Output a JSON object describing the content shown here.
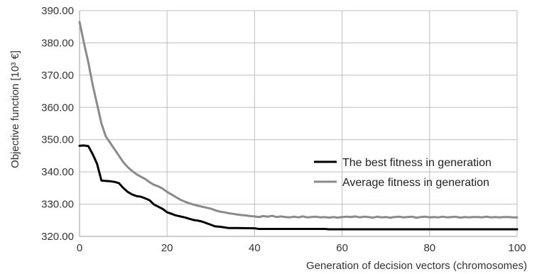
{
  "chart_data": {
    "type": "line",
    "title": "",
    "xlabel": "Generation of decision vectors (chromosomes)",
    "ylabel": "Objective function [10³ €]",
    "xlim": [
      0,
      100
    ],
    "ylim": [
      320,
      390
    ],
    "x_ticks": [
      0,
      20,
      40,
      60,
      80,
      100
    ],
    "y_ticks": [
      320,
      330,
      340,
      350,
      360,
      370,
      380,
      390
    ],
    "x_tick_labels": [
      "0",
      "20",
      "40",
      "60",
      "80",
      "100"
    ],
    "y_tick_labels": [
      "320.00",
      "330.00",
      "340.00",
      "350.00",
      "360.00",
      "370.00",
      "380.00",
      "390.00"
    ],
    "grid": true,
    "legend_position": "right",
    "series": [
      {
        "name": "The best fitness in generation",
        "color": "#000000",
        "points": [
          [
            0,
            348.1
          ],
          [
            1,
            348.2
          ],
          [
            2,
            348.0
          ],
          [
            3,
            345.5
          ],
          [
            4,
            342.5
          ],
          [
            5,
            337.3
          ],
          [
            6,
            337.2
          ],
          [
            7,
            337.1
          ],
          [
            8,
            336.9
          ],
          [
            9,
            336.5
          ],
          [
            10,
            335.0
          ],
          [
            11,
            333.8
          ],
          [
            12,
            333.0
          ],
          [
            13,
            332.5
          ],
          [
            14,
            332.3
          ],
          [
            15,
            331.8
          ],
          [
            16,
            331.2
          ],
          [
            17,
            329.9
          ],
          [
            18,
            329.2
          ],
          [
            19,
            328.5
          ],
          [
            20,
            327.5
          ],
          [
            21,
            327.0
          ],
          [
            22,
            326.5
          ],
          [
            23,
            326.2
          ],
          [
            24,
            325.9
          ],
          [
            25,
            325.5
          ],
          [
            26,
            325.1
          ],
          [
            27,
            324.9
          ],
          [
            28,
            324.6
          ],
          [
            29,
            324.1
          ],
          [
            30,
            323.6
          ],
          [
            31,
            323.1
          ],
          [
            32,
            323.0
          ],
          [
            33,
            322.8
          ],
          [
            34,
            322.6
          ],
          [
            36,
            322.6
          ],
          [
            40,
            322.5
          ],
          [
            41,
            322.3
          ],
          [
            50,
            322.3
          ],
          [
            56,
            322.3
          ],
          [
            57,
            322.2
          ],
          [
            70,
            322.2
          ],
          [
            85,
            322.2
          ],
          [
            100,
            322.2
          ]
        ]
      },
      {
        "name": "Average fitness in generation",
        "color": "#8a8a8a",
        "points": [
          [
            0,
            386.5
          ],
          [
            1,
            380.0
          ],
          [
            2,
            374.0
          ],
          [
            3,
            367.0
          ],
          [
            4,
            361.0
          ],
          [
            5,
            355.0
          ],
          [
            6,
            351.0
          ],
          [
            7,
            349.0
          ],
          [
            8,
            347.0
          ],
          [
            9,
            345.0
          ],
          [
            10,
            343.0
          ],
          [
            11,
            341.5
          ],
          [
            12,
            340.3
          ],
          [
            13,
            339.3
          ],
          [
            14,
            338.5
          ],
          [
            15,
            337.8
          ],
          [
            16,
            336.8
          ],
          [
            17,
            336.0
          ],
          [
            18,
            335.5
          ],
          [
            19,
            334.8
          ],
          [
            20,
            333.8
          ],
          [
            21,
            333.0
          ],
          [
            22,
            332.2
          ],
          [
            23,
            331.4
          ],
          [
            24,
            330.8
          ],
          [
            25,
            330.3
          ],
          [
            26,
            329.9
          ],
          [
            27,
            329.5
          ],
          [
            28,
            329.2
          ],
          [
            29,
            328.9
          ],
          [
            30,
            328.6
          ],
          [
            31,
            328.1
          ],
          [
            32,
            327.7
          ],
          [
            33,
            327.5
          ],
          [
            34,
            327.2
          ],
          [
            35,
            327.0
          ],
          [
            36,
            326.8
          ],
          [
            37,
            326.6
          ],
          [
            38,
            326.5
          ],
          [
            39,
            326.3
          ],
          [
            40,
            326.2
          ],
          [
            41,
            326.0
          ],
          [
            42,
            326.3
          ],
          [
            43,
            326.1
          ],
          [
            44,
            326.4
          ],
          [
            45,
            326.0
          ],
          [
            46,
            326.2
          ],
          [
            47,
            326.0
          ],
          [
            48,
            325.9
          ],
          [
            49,
            326.1
          ],
          [
            50,
            325.9
          ],
          [
            51,
            326.2
          ],
          [
            52,
            325.9
          ],
          [
            53,
            326.0
          ],
          [
            54,
            326.1
          ],
          [
            55,
            325.9
          ],
          [
            56,
            326.0
          ],
          [
            57,
            325.8
          ],
          [
            58,
            326.0
          ],
          [
            59,
            325.8
          ],
          [
            60,
            326.0
          ],
          [
            61,
            326.1
          ],
          [
            62,
            326.0
          ],
          [
            63,
            326.2
          ],
          [
            64,
            325.9
          ],
          [
            65,
            326.1
          ],
          [
            66,
            326.0
          ],
          [
            67,
            325.8
          ],
          [
            68,
            326.1
          ],
          [
            69,
            325.9
          ],
          [
            70,
            326.0
          ],
          [
            71,
            325.8
          ],
          [
            72,
            326.0
          ],
          [
            73,
            326.1
          ],
          [
            74,
            325.9
          ],
          [
            75,
            326.0
          ],
          [
            76,
            326.1
          ],
          [
            77,
            325.8
          ],
          [
            78,
            326.0
          ],
          [
            79,
            326.1
          ],
          [
            80,
            325.9
          ],
          [
            81,
            326.0
          ],
          [
            82,
            325.9
          ],
          [
            83,
            326.1
          ],
          [
            84,
            325.9
          ],
          [
            85,
            326.0
          ],
          [
            86,
            326.1
          ],
          [
            87,
            325.8
          ],
          [
            88,
            326.0
          ],
          [
            89,
            325.9
          ],
          [
            90,
            326.0
          ],
          [
            91,
            326.0
          ],
          [
            92,
            325.9
          ],
          [
            93,
            326.1
          ],
          [
            94,
            325.9
          ],
          [
            95,
            326.0
          ],
          [
            96,
            325.9
          ],
          [
            97,
            326.0
          ],
          [
            98,
            326.0
          ],
          [
            99,
            325.9
          ],
          [
            100,
            325.9
          ]
        ]
      }
    ]
  }
}
